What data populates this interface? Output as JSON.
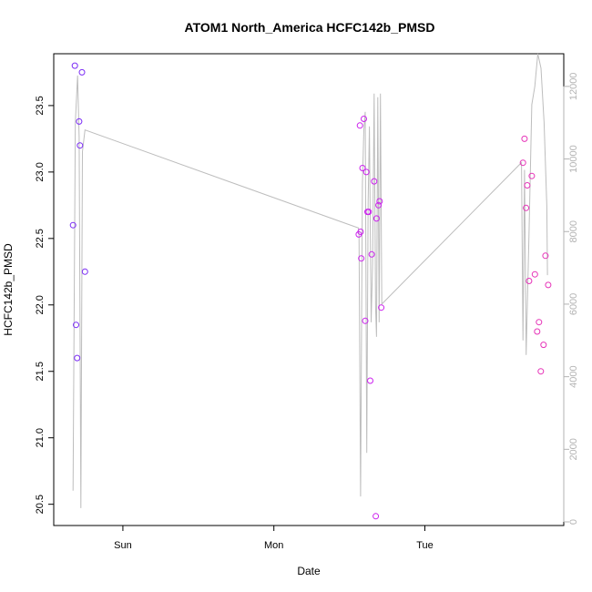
{
  "chart_data": {
    "type": "scatter",
    "title": "ATOM1 North_America HCFC142b_PMSD",
    "xlabel": "Date",
    "ylabel": "HCFC142b_PMSD",
    "x_ticks": [
      {
        "label": "Sun",
        "x": 0.0
      },
      {
        "label": "Mon",
        "x": 1.0
      },
      {
        "label": "Tue",
        "x": 2.0
      }
    ],
    "xlim": [
      -0.458,
      2.92
    ],
    "ylim": [
      20.34,
      23.89
    ],
    "y_ticks": [
      20.5,
      21.0,
      21.5,
      22.0,
      22.5,
      23.0,
      23.5
    ],
    "y2lim": [
      -100,
      12900
    ],
    "y2_ticks": [
      0,
      2000,
      4000,
      6000,
      8000,
      10000,
      12000
    ],
    "grid": false,
    "points": [
      {
        "x": -0.33,
        "y": 22.6,
        "color": "#7b2cf5"
      },
      {
        "x": -0.318,
        "y": 23.8,
        "color": "#7b2cf5"
      },
      {
        "x": -0.31,
        "y": 21.85,
        "color": "#7b2cf5"
      },
      {
        "x": -0.303,
        "y": 21.6,
        "color": "#7b2cf5"
      },
      {
        "x": -0.29,
        "y": 23.38,
        "color": "#7b2cf5"
      },
      {
        "x": -0.284,
        "y": 23.2,
        "color": "#7b2cf5"
      },
      {
        "x": -0.271,
        "y": 23.75,
        "color": "#7b2cf5"
      },
      {
        "x": -0.251,
        "y": 22.25,
        "color": "#7b2cf5"
      },
      {
        "x": 1.562,
        "y": 22.53,
        "color": "#cc22ee"
      },
      {
        "x": 1.57,
        "y": 23.35,
        "color": "#cc22ee"
      },
      {
        "x": 1.574,
        "y": 22.55,
        "color": "#cc22ee"
      },
      {
        "x": 1.579,
        "y": 22.35,
        "color": "#cc22ee"
      },
      {
        "x": 1.587,
        "y": 23.03,
        "color": "#cc22ee"
      },
      {
        "x": 1.596,
        "y": 23.4,
        "color": "#cc22ee"
      },
      {
        "x": 1.605,
        "y": 21.88,
        "color": "#cc22ee"
      },
      {
        "x": 1.612,
        "y": 23.0,
        "color": "#cc22ee"
      },
      {
        "x": 1.62,
        "y": 22.7,
        "color": "#cc22ee"
      },
      {
        "x": 1.628,
        "y": 22.7,
        "color": "#cc22ee"
      },
      {
        "x": 1.638,
        "y": 21.43,
        "color": "#cc22ee"
      },
      {
        "x": 1.648,
        "y": 22.38,
        "color": "#cc22ee"
      },
      {
        "x": 1.664,
        "y": 22.93,
        "color": "#cc22ee"
      },
      {
        "x": 1.675,
        "y": 20.41,
        "color": "#cc22ee"
      },
      {
        "x": 1.68,
        "y": 22.65,
        "color": "#cc22ee"
      },
      {
        "x": 1.693,
        "y": 22.75,
        "color": "#cc22ee"
      },
      {
        "x": 1.7,
        "y": 22.78,
        "color": "#cc22ee"
      },
      {
        "x": 1.711,
        "y": 21.98,
        "color": "#cc22ee"
      },
      {
        "x": 2.65,
        "y": 23.07,
        "color": "#e633b8"
      },
      {
        "x": 2.66,
        "y": 23.25,
        "color": "#e633b8"
      },
      {
        "x": 2.67,
        "y": 22.73,
        "color": "#e633b8"
      },
      {
        "x": 2.678,
        "y": 22.9,
        "color": "#e633b8"
      },
      {
        "x": 2.69,
        "y": 22.18,
        "color": "#e633b8"
      },
      {
        "x": 2.708,
        "y": 22.97,
        "color": "#e633b8"
      },
      {
        "x": 2.729,
        "y": 22.23,
        "color": "#e633b8"
      },
      {
        "x": 2.744,
        "y": 21.8,
        "color": "#e633b8"
      },
      {
        "x": 2.756,
        "y": 21.87,
        "color": "#e633b8"
      },
      {
        "x": 2.768,
        "y": 21.5,
        "color": "#e633b8"
      },
      {
        "x": 2.786,
        "y": 21.7,
        "color": "#e633b8"
      },
      {
        "x": 2.799,
        "y": 22.37,
        "color": "#e633b8"
      },
      {
        "x": 2.817,
        "y": 22.15,
        "color": "#e633b8"
      }
    ],
    "line_series": {
      "color": "#bdbdbd",
      "axis": "right",
      "x": [
        -0.33,
        -0.315,
        -0.3,
        -0.29,
        -0.278,
        -0.268,
        -0.251,
        -0.251,
        1.56,
        1.564,
        1.574,
        1.586,
        1.596,
        1.605,
        1.615,
        1.624,
        1.633,
        1.644,
        1.654,
        1.664,
        1.674,
        1.68,
        1.688,
        1.697,
        1.706,
        1.715,
        2.64,
        2.65,
        2.66,
        2.671,
        2.69,
        2.708,
        2.728,
        2.748,
        2.769,
        2.79,
        2.808,
        2.812
      ],
      "y": [
        860,
        11000,
        12300,
        10600,
        380,
        10200,
        10800,
        10800,
        8100,
        7900,
        700,
        9300,
        10800,
        11300,
        1900,
        8800,
        10900,
        5500,
        7100,
        11800,
        5900,
        5100,
        11700,
        5500,
        11800,
        6000,
        9900,
        5000,
        9700,
        4600,
        8000,
        11500,
        12000,
        12900,
        12500,
        11000,
        8700,
        6800
      ]
    }
  }
}
